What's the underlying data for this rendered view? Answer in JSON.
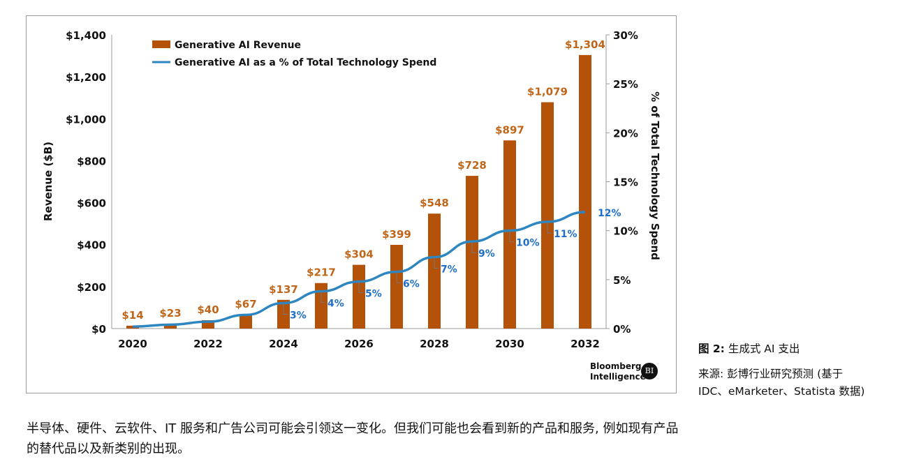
{
  "chart_data": {
    "type": "bar+line",
    "categories": [
      2020,
      2021,
      2022,
      2023,
      2024,
      2025,
      2026,
      2027,
      2028,
      2029,
      2030,
      2031,
      2032
    ],
    "x_tick_labels": [
      "2020",
      "2022",
      "2024",
      "2026",
      "2028",
      "2030",
      "2032"
    ],
    "series": [
      {
        "name": "Generative AI Revenue",
        "type": "bar",
        "axis": "left",
        "color": "#b5520a",
        "values": [
          14,
          23,
          40,
          67,
          137,
          217,
          304,
          399,
          548,
          728,
          897,
          1079,
          1304
        ],
        "labels": [
          "$14",
          "$23",
          "$40",
          "$67",
          "$137",
          "$217",
          "$304",
          "$399",
          "$548",
          "$728",
          "$897",
          "$1,079",
          "$1,304"
        ]
      },
      {
        "name": "Generative AI as a % of Total Technology Spend",
        "type": "line",
        "axis": "right",
        "color": "#2e86c1",
        "values": [
          0.2,
          0.4,
          0.7,
          1.4,
          2.6,
          3.8,
          4.8,
          5.8,
          7.3,
          8.9,
          10.0,
          10.9,
          11.9
        ],
        "labels": [
          "",
          "",
          "",
          "",
          "3%",
          "4%",
          "5%",
          "6%",
          "7%",
          "9%",
          "10%",
          "11%",
          "12%"
        ]
      }
    ],
    "ylabel": "Revenue ($B)",
    "y2label": "% of Total Technology Spend",
    "ylim": [
      0,
      1400
    ],
    "y2lim": [
      0,
      30
    ],
    "y_ticks": [
      "$0",
      "$200",
      "$400",
      "$600",
      "$800",
      "$1,000",
      "$1,200",
      "$1,400"
    ],
    "y2_ticks": [
      "0%",
      "5%",
      "10%",
      "15%",
      "20%",
      "25%",
      "30%"
    ],
    "grid": false,
    "legend": "top-left"
  },
  "logo": {
    "text1": "Bloomberg",
    "text2": "Intelligence",
    "badge": "BI"
  },
  "caption": {
    "figure": "图 2:",
    "title": "生成式 AI 支出",
    "source_line1": "来源: 彭博行业研究预测 (基于",
    "source_line2": "IDC、eMarketer、Statista 数据)"
  },
  "body_text": "半导体、硬件、云软件、IT 服务和广告公司可能会引领这一变化。但我们可能也会看到新的产品和服务, 例如现有产品的替代品以及新类别的出现。"
}
